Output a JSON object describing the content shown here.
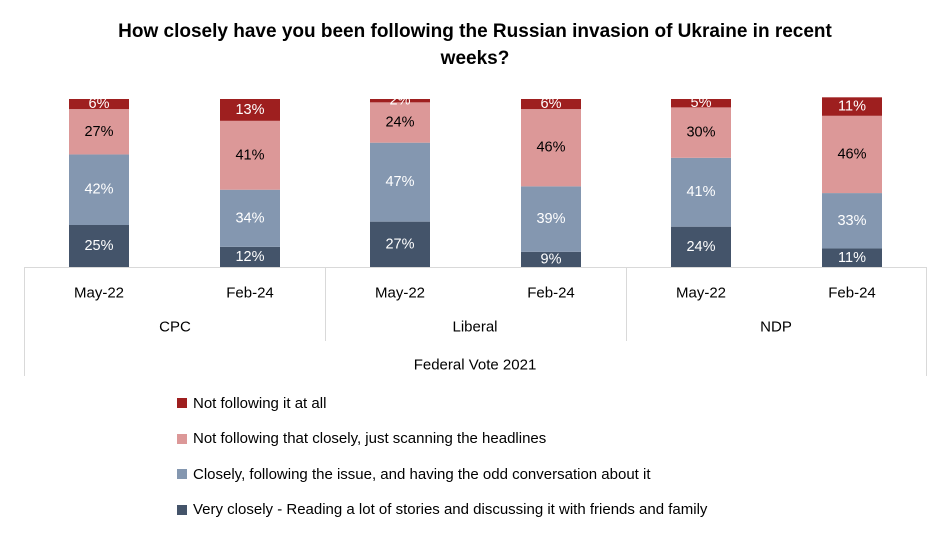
{
  "chart_data": {
    "type": "bar",
    "stacked": true,
    "title": "How closely have you been following the Russian invasion of Ukraine in recent weeks?",
    "categories": [
      "May-22",
      "Feb-24",
      "May-22",
      "Feb-24",
      "May-22",
      "Feb-24"
    ],
    "groups": [
      "CPC",
      "Liberal",
      "NDP"
    ],
    "group_axis_label": "Federal Vote 2021",
    "series": [
      {
        "name": "Very closely - Reading a lot of stories and discussing it with friends and family",
        "color": "#44546a",
        "label_color": "#ffffff",
        "values": [
          25,
          12,
          27,
          9,
          24,
          11
        ]
      },
      {
        "name": "Closely, following the issue, and having the odd conversation about it",
        "color": "#8497b0",
        "label_color": "#ffffff",
        "values": [
          42,
          34,
          47,
          39,
          41,
          33
        ]
      },
      {
        "name": "Not following that closely, just scanning the headlines",
        "color": "#dc9898",
        "label_color": "#000000",
        "values": [
          27,
          41,
          24,
          46,
          30,
          46
        ]
      },
      {
        "name": "Not following it at all",
        "color": "#9e1f1f",
        "label_color": "#ffffff",
        "values": [
          6,
          13,
          2,
          6,
          5,
          11
        ]
      }
    ],
    "value_suffix": "%",
    "legend_position": "bottom",
    "grid": false
  }
}
